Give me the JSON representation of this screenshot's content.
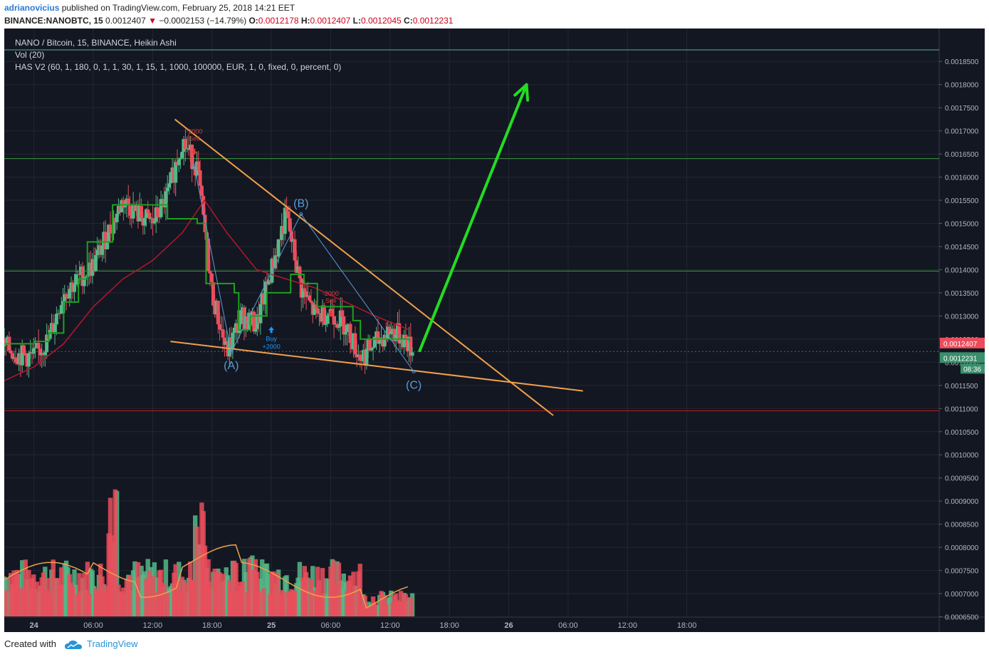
{
  "header": {
    "author": "adrianovicius",
    "published": "published on TradingView.com, February 25, 2018 14:21 EET",
    "symbol": "BINANCE:NANOBTC, 15",
    "price": "0.0012407",
    "arrow": "▼",
    "change": "−0.0002153 (−14.79%)",
    "o_label": "O:",
    "o_value": "0.0012178",
    "h_label": "H:",
    "h_value": "0.0012407",
    "l_label": "L:",
    "l_value": "0.0012045",
    "c_label": "C:",
    "c_value": "0.0012231"
  },
  "legend": {
    "title": "NANO / Bitcoin, 15, BINANCE, Heikin Ashi",
    "volume": "Vol (20)",
    "indicator": "HAS V2 (60, 1, 180, 0, 1, 1, 30, 1, 15, 1, 1000, 100000, EUR, 1, 0, fixed, 0, percent, 0)"
  },
  "footer": {
    "created": "Created with",
    "brand": "TradingView"
  },
  "colors": {
    "background": "#131722",
    "up": "#53b987",
    "down": "#eb4d5c",
    "trendline": "#f0a04b",
    "wave": "#5b9bd5",
    "arrow": "#22dd22",
    "has_line": "#1ea01e",
    "ma": "#b2182b",
    "h_green": "#4caf50",
    "h_red": "#b71c1c"
  },
  "chart_data": {
    "type": "candlestick",
    "price_axis": {
      "range": [
        0.00062,
        0.001875
      ],
      "ticks": [
        "0.0018500",
        "0.0018000",
        "0.0017500",
        "0.0017000",
        "0.0016500",
        "0.0016000",
        "0.0015500",
        "0.0015000",
        "0.0014500",
        "0.0014000",
        "0.0013500",
        "0.0013000",
        "0.0012500",
        "0.0012000",
        "0.0011500",
        "0.0011000",
        "0.0010500",
        "0.0010000",
        "0.0009500",
        "0.0009000",
        "0.0008500",
        "0.0008000",
        "0.0007500",
        "0.0007000",
        "0.0006500"
      ],
      "price_label": "0.0012407",
      "close_label": "0.0012231",
      "countdown": "08:36"
    },
    "time_axis": {
      "range": [
        0,
        62
      ],
      "ticks": [
        {
          "t": 2,
          "label": "24"
        },
        {
          "t": 6,
          "label": "06:00"
        },
        {
          "t": 10,
          "label": "12:00"
        },
        {
          "t": 14,
          "label": "18:00"
        },
        {
          "t": 18,
          "label": "25"
        },
        {
          "t": 22,
          "label": "06:00"
        },
        {
          "t": 26,
          "label": "12:00"
        },
        {
          "t": 30,
          "label": "18:00"
        },
        {
          "t": 34,
          "label": "26"
        },
        {
          "t": 38,
          "label": "06:00"
        },
        {
          "t": 42,
          "label": "12:00"
        },
        {
          "t": 46,
          "label": "18:00"
        }
      ]
    },
    "price_path": [
      [
        0,
        0.001235
      ],
      [
        1,
        0.001215
      ],
      [
        2,
        0.00121
      ],
      [
        3,
        0.00125
      ],
      [
        4,
        0.00135
      ],
      [
        5,
        0.00138
      ],
      [
        6,
        0.00141
      ],
      [
        7,
        0.00148
      ],
      [
        8,
        0.00155
      ],
      [
        9,
        0.00152
      ],
      [
        10,
        0.0015
      ],
      [
        11,
        0.00156
      ],
      [
        12,
        0.00168
      ],
      [
        13,
        0.00162
      ],
      [
        14,
        0.00135
      ],
      [
        15,
        0.00122
      ],
      [
        16,
        0.0013
      ],
      [
        17,
        0.00128
      ],
      [
        18,
        0.0014
      ],
      [
        19,
        0.00152
      ],
      [
        20,
        0.00136
      ],
      [
        21,
        0.0013
      ],
      [
        22,
        0.00131
      ],
      [
        23,
        0.00128
      ],
      [
        24,
        0.00121
      ],
      [
        25,
        0.00124
      ],
      [
        26,
        0.00127
      ],
      [
        27,
        0.00125
      ],
      [
        27.5,
        0.001223
      ]
    ],
    "has_line": [
      [
        0,
        0.00124
      ],
      [
        2,
        0.001245
      ],
      [
        3,
        0.001263
      ],
      [
        4,
        0.00133
      ],
      [
        5,
        0.00138
      ],
      [
        5.6,
        0.00146
      ],
      [
        7.3,
        0.00154
      ],
      [
        10.4,
        0.00154
      ],
      [
        11,
        0.00151
      ],
      [
        13,
        0.0015
      ],
      [
        13.6,
        0.00137
      ],
      [
        15.5,
        0.00135
      ],
      [
        15.8,
        0.00127
      ],
      [
        16.6,
        0.0013
      ],
      [
        17.7,
        0.00135
      ],
      [
        19.3,
        0.00139
      ],
      [
        20.2,
        0.00137
      ],
      [
        21.1,
        0.00132
      ],
      [
        23.5,
        0.00129
      ],
      [
        24,
        0.00125
      ],
      [
        25.5,
        0.00125
      ],
      [
        26.3,
        0.00125
      ],
      [
        27.3,
        0.001245
      ]
    ],
    "ma_line": [
      [
        0,
        0.00116
      ],
      [
        2,
        0.00119
      ],
      [
        4,
        0.00124
      ],
      [
        6,
        0.00132
      ],
      [
        8,
        0.00138
      ],
      [
        10,
        0.00142
      ],
      [
        12,
        0.00148
      ],
      [
        13.5,
        0.00155
      ],
      [
        15,
        0.00148
      ],
      [
        17,
        0.0014
      ],
      [
        19,
        0.00138
      ],
      [
        21,
        0.00136
      ],
      [
        23,
        0.00133
      ],
      [
        25,
        0.0013
      ],
      [
        27.3,
        0.00127
      ]
    ],
    "volume": {
      "scale": "relative 0-1 of pane height",
      "series_bars": "up/down alternating area",
      "ma_line": "orange"
    },
    "horizontal_lines": [
      {
        "price": 0.001875,
        "color": "teal"
      },
      {
        "price": 0.00164,
        "color": "green"
      },
      {
        "price": 0.001397,
        "color": "green"
      },
      {
        "price": 0.001223,
        "color": "green-dotted"
      },
      {
        "price": 0.001095,
        "color": "red"
      }
    ],
    "trendlines": [
      {
        "from": [
          11.5,
          0.001725
        ],
        "to": [
          37.0,
          0.001085
        ]
      },
      {
        "from": [
          11.2,
          0.001245
        ],
        "to": [
          39.0,
          0.001138
        ]
      }
    ],
    "wave_points": [
      {
        "t": 15.3,
        "p": 0.001222,
        "label": "(A)"
      },
      {
        "t": 20.0,
        "p": 0.00152,
        "label": "(B)"
      },
      {
        "t": 27.6,
        "p": 0.00118,
        "label": "(C)"
      }
    ],
    "annotations": [
      {
        "t": 12.8,
        "p": 0.00166,
        "text": "Sell",
        "amount": "-2000"
      },
      {
        "t": 18.0,
        "p": 0.00128,
        "text": "Buy",
        "amount": "+2000"
      },
      {
        "t": 22.0,
        "p": 0.00131,
        "text": "Sell",
        "amount": "-2000"
      }
    ],
    "projection": {
      "from": [
        28.0,
        0.001225
      ],
      "to": [
        35.2,
        0.0018
      ]
    }
  }
}
